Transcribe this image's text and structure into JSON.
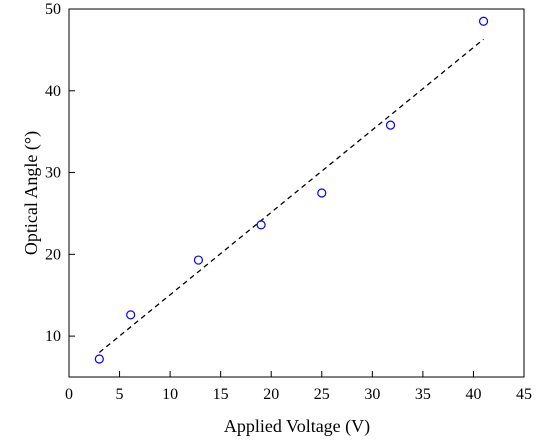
{
  "chart_data": {
    "type": "scatter",
    "title": "",
    "xlabel": "Applied Voltage (V)",
    "ylabel": "Optical Angle (°)",
    "xlim": [
      0,
      45
    ],
    "ylim": [
      5,
      50
    ],
    "xticks": [
      0,
      5,
      10,
      15,
      20,
      25,
      30,
      35,
      40,
      45
    ],
    "yticks": [
      10,
      20,
      30,
      40,
      50
    ],
    "grid": false,
    "legend": "none",
    "series": [
      {
        "marker": "open-circle",
        "color": "#0000ff",
        "x": [
          3.0,
          6.1,
          12.8,
          19.0,
          25.0,
          31.8,
          41.0
        ],
        "y": [
          7.2,
          12.6,
          19.3,
          23.6,
          27.5,
          35.8,
          48.5
        ]
      }
    ],
    "fit_line": {
      "style": "dashed",
      "color": "#000000",
      "x": [
        3.0,
        41.0
      ],
      "y": [
        8.0,
        46.3
      ]
    }
  }
}
